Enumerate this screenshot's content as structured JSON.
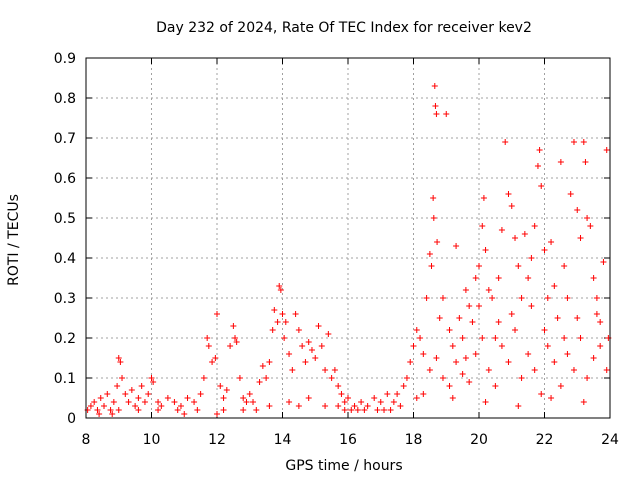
{
  "chart_data": {
    "type": "scatter",
    "title": "Day 232 of 2024, Rate Of TEC Index for receiver kev2",
    "xlabel": "GPS time / hours",
    "ylabel": "ROTI / TECUs",
    "xlim": [
      8,
      24
    ],
    "ylim": [
      0,
      0.9
    ],
    "grid": true,
    "marker": "+",
    "color": "#ff0000",
    "x_ticks": [
      8,
      10,
      12,
      14,
      16,
      18,
      20,
      22,
      24
    ],
    "x_tick_labels": [
      "8",
      "10",
      "12",
      "14",
      "16",
      "18",
      "20",
      "22",
      "24"
    ],
    "y_ticks": [
      0,
      0.1,
      0.2,
      0.3,
      0.4,
      0.5,
      0.6,
      0.7,
      0.8,
      0.9
    ],
    "y_tick_labels": [
      "0",
      "0.1",
      "0.2",
      "0.3",
      "0.4",
      "0.5",
      "0.6",
      "0.7",
      "0.8",
      "0.9"
    ],
    "series": [
      {
        "name": "ROTI",
        "points": [
          [
            8.05,
            0.02
          ],
          [
            8.15,
            0.03
          ],
          [
            8.25,
            0.04
          ],
          [
            8.35,
            0.02
          ],
          [
            8.45,
            0.05
          ],
          [
            8.55,
            0.03
          ],
          [
            8.65,
            0.06
          ],
          [
            8.75,
            0.02
          ],
          [
            8.85,
            0.04
          ],
          [
            8.95,
            0.08
          ],
          [
            9.0,
            0.15
          ],
          [
            9.05,
            0.14
          ],
          [
            9.1,
            0.1
          ],
          [
            9.2,
            0.06
          ],
          [
            9.3,
            0.04
          ],
          [
            9.4,
            0.07
          ],
          [
            9.5,
            0.03
          ],
          [
            9.6,
            0.05
          ],
          [
            9.7,
            0.08
          ],
          [
            9.8,
            0.04
          ],
          [
            9.9,
            0.06
          ],
          [
            10.0,
            0.1
          ],
          [
            10.05,
            0.09
          ],
          [
            10.2,
            0.04
          ],
          [
            10.3,
            0.03
          ],
          [
            10.5,
            0.05
          ],
          [
            10.7,
            0.04
          ],
          [
            10.9,
            0.03
          ],
          [
            11.1,
            0.05
          ],
          [
            11.3,
            0.04
          ],
          [
            11.5,
            0.06
          ],
          [
            11.6,
            0.1
          ],
          [
            11.7,
            0.2
          ],
          [
            11.75,
            0.18
          ],
          [
            11.85,
            0.14
          ],
          [
            11.95,
            0.15
          ],
          [
            12.0,
            0.26
          ],
          [
            12.1,
            0.08
          ],
          [
            12.2,
            0.05
          ],
          [
            12.3,
            0.07
          ],
          [
            12.4,
            0.18
          ],
          [
            12.5,
            0.23
          ],
          [
            12.55,
            0.2
          ],
          [
            12.6,
            0.19
          ],
          [
            12.7,
            0.1
          ],
          [
            12.8,
            0.05
          ],
          [
            12.9,
            0.04
          ],
          [
            13.0,
            0.06
          ],
          [
            13.1,
            0.04
          ],
          [
            13.3,
            0.09
          ],
          [
            13.4,
            0.13
          ],
          [
            13.5,
            0.1
          ],
          [
            13.6,
            0.14
          ],
          [
            13.7,
            0.22
          ],
          [
            13.75,
            0.27
          ],
          [
            13.85,
            0.24
          ],
          [
            13.9,
            0.33
          ],
          [
            13.95,
            0.32
          ],
          [
            14.0,
            0.26
          ],
          [
            14.05,
            0.2
          ],
          [
            14.1,
            0.24
          ],
          [
            14.2,
            0.16
          ],
          [
            14.3,
            0.12
          ],
          [
            14.4,
            0.26
          ],
          [
            14.5,
            0.22
          ],
          [
            14.6,
            0.18
          ],
          [
            14.7,
            0.14
          ],
          [
            14.8,
            0.19
          ],
          [
            14.9,
            0.17
          ],
          [
            15.0,
            0.15
          ],
          [
            15.1,
            0.23
          ],
          [
            15.2,
            0.18
          ],
          [
            15.3,
            0.12
          ],
          [
            15.4,
            0.21
          ],
          [
            15.5,
            0.1
          ],
          [
            15.6,
            0.12
          ],
          [
            15.7,
            0.08
          ],
          [
            15.8,
            0.06
          ],
          [
            15.9,
            0.04
          ],
          [
            16.0,
            0.05
          ],
          [
            16.2,
            0.03
          ],
          [
            16.4,
            0.04
          ],
          [
            16.6,
            0.03
          ],
          [
            16.8,
            0.05
          ],
          [
            17.0,
            0.04
          ],
          [
            17.2,
            0.06
          ],
          [
            17.4,
            0.04
          ],
          [
            17.5,
            0.06
          ],
          [
            17.7,
            0.08
          ],
          [
            17.8,
            0.1
          ],
          [
            17.9,
            0.14
          ],
          [
            18.0,
            0.18
          ],
          [
            18.1,
            0.22
          ],
          [
            18.2,
            0.2
          ],
          [
            18.3,
            0.16
          ],
          [
            18.4,
            0.3
          ],
          [
            18.5,
            0.41
          ],
          [
            18.55,
            0.38
          ],
          [
            18.6,
            0.55
          ],
          [
            18.62,
            0.5
          ],
          [
            18.65,
            0.83
          ],
          [
            18.67,
            0.78
          ],
          [
            18.7,
            0.76
          ],
          [
            18.72,
            0.44
          ],
          [
            18.8,
            0.25
          ],
          [
            18.9,
            0.3
          ],
          [
            19.0,
            0.76
          ],
          [
            19.1,
            0.22
          ],
          [
            19.2,
            0.18
          ],
          [
            19.3,
            0.43
          ],
          [
            19.4,
            0.25
          ],
          [
            19.5,
            0.2
          ],
          [
            19.6,
            0.15
          ],
          [
            19.7,
            0.28
          ],
          [
            19.8,
            0.24
          ],
          [
            19.9,
            0.35
          ],
          [
            20.0,
            0.38
          ],
          [
            20.1,
            0.48
          ],
          [
            20.15,
            0.55
          ],
          [
            20.2,
            0.42
          ],
          [
            20.3,
            0.32
          ],
          [
            20.4,
            0.3
          ],
          [
            20.5,
            0.2
          ],
          [
            20.6,
            0.35
          ],
          [
            20.7,
            0.47
          ],
          [
            20.8,
            0.69
          ],
          [
            20.9,
            0.56
          ],
          [
            21.0,
            0.53
          ],
          [
            21.1,
            0.45
          ],
          [
            21.2,
            0.38
          ],
          [
            21.3,
            0.3
          ],
          [
            21.4,
            0.46
          ],
          [
            21.5,
            0.35
          ],
          [
            21.6,
            0.4
          ],
          [
            21.7,
            0.48
          ],
          [
            21.8,
            0.63
          ],
          [
            21.85,
            0.67
          ],
          [
            21.9,
            0.58
          ],
          [
            22.0,
            0.42
          ],
          [
            22.1,
            0.3
          ],
          [
            22.2,
            0.44
          ],
          [
            22.3,
            0.33
          ],
          [
            22.4,
            0.25
          ],
          [
            22.5,
            0.64
          ],
          [
            22.6,
            0.38
          ],
          [
            22.7,
            0.3
          ],
          [
            22.8,
            0.56
          ],
          [
            22.9,
            0.69
          ],
          [
            23.0,
            0.52
          ],
          [
            23.1,
            0.45
          ],
          [
            23.2,
            0.69
          ],
          [
            23.25,
            0.64
          ],
          [
            23.3,
            0.5
          ],
          [
            23.4,
            0.48
          ],
          [
            23.5,
            0.35
          ],
          [
            23.6,
            0.3
          ],
          [
            23.7,
            0.24
          ],
          [
            23.8,
            0.39
          ],
          [
            23.9,
            0.67
          ],
          [
            23.95,
            0.2
          ],
          [
            18.5,
            0.12
          ],
          [
            18.7,
            0.15
          ],
          [
            18.9,
            0.1
          ],
          [
            19.1,
            0.08
          ],
          [
            19.3,
            0.14
          ],
          [
            19.5,
            0.11
          ],
          [
            19.7,
            0.09
          ],
          [
            19.9,
            0.16
          ],
          [
            20.1,
            0.2
          ],
          [
            20.3,
            0.12
          ],
          [
            20.5,
            0.08
          ],
          [
            20.7,
            0.18
          ],
          [
            20.9,
            0.14
          ],
          [
            21.1,
            0.22
          ],
          [
            21.3,
            0.1
          ],
          [
            21.5,
            0.16
          ],
          [
            21.7,
            0.12
          ],
          [
            21.9,
            0.06
          ],
          [
            22.1,
            0.18
          ],
          [
            22.3,
            0.14
          ],
          [
            22.5,
            0.08
          ],
          [
            22.7,
            0.16
          ],
          [
            22.9,
            0.12
          ],
          [
            23.1,
            0.2
          ],
          [
            23.3,
            0.1
          ],
          [
            23.5,
            0.15
          ],
          [
            23.7,
            0.18
          ],
          [
            23.9,
            0.12
          ],
          [
            20.0,
            0.28
          ],
          [
            21.0,
            0.26
          ],
          [
            22.0,
            0.22
          ],
          [
            23.0,
            0.25
          ],
          [
            19.6,
            0.32
          ],
          [
            20.6,
            0.24
          ],
          [
            21.6,
            0.28
          ],
          [
            22.6,
            0.2
          ],
          [
            23.6,
            0.26
          ],
          [
            19.2,
            0.05
          ],
          [
            20.2,
            0.04
          ],
          [
            21.2,
            0.03
          ],
          [
            22.2,
            0.05
          ],
          [
            23.2,
            0.04
          ],
          [
            18.3,
            0.06
          ],
          [
            18.1,
            0.05
          ],
          [
            17.6,
            0.03
          ],
          [
            17.3,
            0.02
          ],
          [
            16.9,
            0.02
          ],
          [
            16.5,
            0.02
          ],
          [
            16.1,
            0.02
          ],
          [
            15.7,
            0.03
          ],
          [
            14.8,
            0.05
          ],
          [
            14.2,
            0.04
          ],
          [
            13.6,
            0.03
          ],
          [
            12.8,
            0.02
          ],
          [
            12.2,
            0.02
          ],
          [
            11.4,
            0.02
          ],
          [
            10.8,
            0.02
          ],
          [
            10.2,
            0.02
          ],
          [
            9.6,
            0.02
          ],
          [
            9.0,
            0.02
          ],
          [
            8.4,
            0.01
          ],
          [
            8.8,
            0.01
          ],
          [
            13.2,
            0.02
          ],
          [
            15.3,
            0.03
          ],
          [
            16.3,
            0.02
          ],
          [
            17.1,
            0.02
          ],
          [
            11.0,
            0.01
          ],
          [
            12.0,
            0.01
          ],
          [
            14.5,
            0.03
          ],
          [
            15.9,
            0.02
          ]
        ]
      }
    ]
  }
}
